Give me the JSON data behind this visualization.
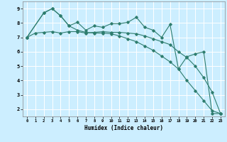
{
  "title": "",
  "xlabel": "Humidex (Indice chaleur)",
  "bg_color": "#cceeff",
  "grid_color": "#ffffff",
  "line_color": "#2e7d6e",
  "xlim": [
    -0.5,
    23.5
  ],
  "ylim": [
    1.5,
    9.5
  ],
  "yticks": [
    2,
    3,
    4,
    5,
    6,
    7,
    8,
    9
  ],
  "xticks": [
    0,
    1,
    2,
    3,
    4,
    5,
    6,
    7,
    8,
    9,
    10,
    11,
    12,
    13,
    14,
    15,
    16,
    17,
    18,
    19,
    20,
    21,
    22,
    23
  ],
  "line1_x": [
    0,
    2,
    3,
    4,
    5,
    6,
    7,
    8,
    9,
    10,
    11,
    12,
    13,
    14,
    15,
    16,
    17,
    18,
    19,
    20,
    21,
    22,
    23
  ],
  "line1_y": [
    7.0,
    8.7,
    9.0,
    8.5,
    7.8,
    8.05,
    7.5,
    7.8,
    7.7,
    7.95,
    7.95,
    8.05,
    8.4,
    7.7,
    7.5,
    7.0,
    7.9,
    4.8,
    5.65,
    5.85,
    6.0,
    1.7,
    1.7
  ],
  "line2_x": [
    0,
    1,
    2,
    3,
    4,
    5,
    6,
    7,
    8,
    9,
    10,
    11,
    12,
    13,
    14,
    15,
    16,
    17,
    18,
    19,
    20,
    21,
    22,
    23
  ],
  "line2_y": [
    7.0,
    7.3,
    7.35,
    7.4,
    7.3,
    7.4,
    7.4,
    7.3,
    7.35,
    7.4,
    7.35,
    7.35,
    7.3,
    7.25,
    7.1,
    6.9,
    6.7,
    6.5,
    6.0,
    5.6,
    5.0,
    4.2,
    3.2,
    1.7
  ],
  "line3_x": [
    0,
    2,
    3,
    4,
    5,
    6,
    7,
    8,
    9,
    10,
    11,
    12,
    13,
    14,
    15,
    16,
    17,
    18,
    19,
    20,
    21,
    22,
    23
  ],
  "line3_y": [
    7.0,
    8.7,
    9.0,
    8.5,
    7.8,
    7.5,
    7.35,
    7.3,
    7.3,
    7.25,
    7.1,
    6.9,
    6.7,
    6.4,
    6.1,
    5.7,
    5.3,
    4.8,
    4.0,
    3.3,
    2.6,
    1.9,
    1.7
  ],
  "marker": "D",
  "marker_size": 1.8,
  "line_width": 0.8
}
